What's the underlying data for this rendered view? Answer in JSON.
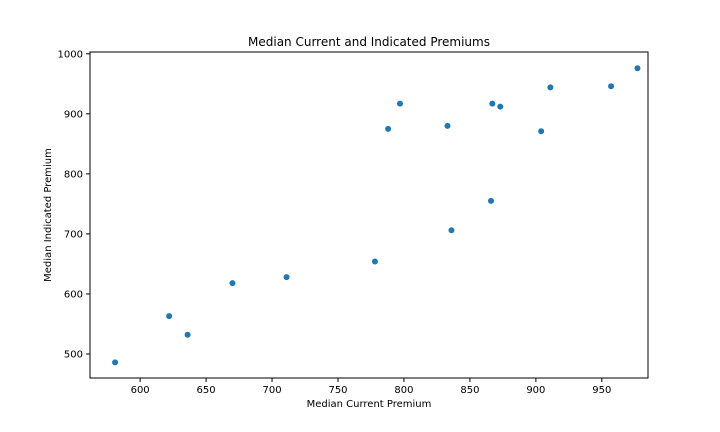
{
  "chart_data": {
    "type": "scatter",
    "title": "Median Current and Indicated Premiums",
    "xlabel": "Median Current Premium",
    "ylabel": "Median Indicated Premium",
    "xlim": [
      562,
      985
    ],
    "ylim": [
      460,
      1003
    ],
    "xticks": [
      600,
      650,
      700,
      750,
      800,
      850,
      900,
      950
    ],
    "yticks": [
      500,
      600,
      700,
      800,
      900,
      1000
    ],
    "grid": false,
    "marker_color": "#1f77b4",
    "points": [
      {
        "x": 581,
        "y": 486
      },
      {
        "x": 622,
        "y": 563
      },
      {
        "x": 636,
        "y": 532
      },
      {
        "x": 670,
        "y": 618
      },
      {
        "x": 711,
        "y": 628
      },
      {
        "x": 778,
        "y": 654
      },
      {
        "x": 788,
        "y": 875
      },
      {
        "x": 797,
        "y": 917
      },
      {
        "x": 833,
        "y": 880
      },
      {
        "x": 836,
        "y": 706
      },
      {
        "x": 866,
        "y": 755
      },
      {
        "x": 867,
        "y": 917
      },
      {
        "x": 873,
        "y": 912
      },
      {
        "x": 904,
        "y": 871
      },
      {
        "x": 911,
        "y": 944
      },
      {
        "x": 957,
        "y": 946
      },
      {
        "x": 977,
        "y": 976
      }
    ]
  }
}
